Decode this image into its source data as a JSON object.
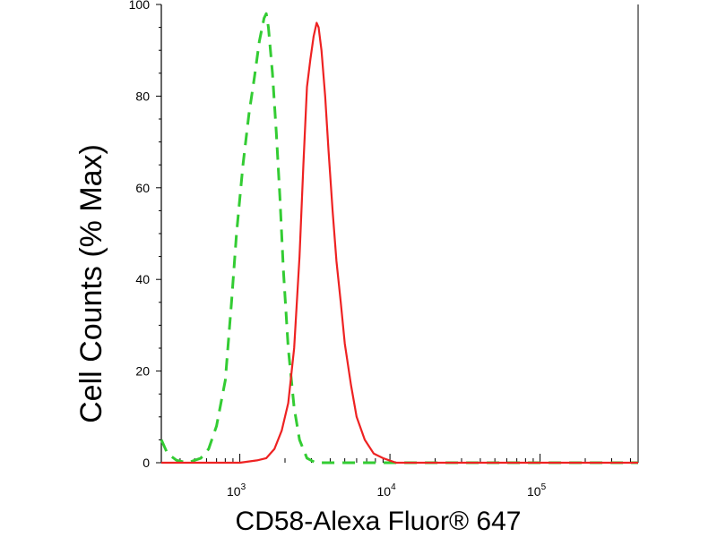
{
  "chart_data": {
    "type": "line",
    "xlabel": "CD58-Alexa Fluor® 647",
    "ylabel": "Cell Counts (% Max)",
    "x_scale": "log",
    "xlim": [
      300,
      450000
    ],
    "ylim": [
      0,
      100
    ],
    "y_ticks": [
      "0",
      "20",
      "40",
      "60",
      "80",
      "100"
    ],
    "x_ticks": [
      {
        "base": "10",
        "exp": "3",
        "value": 1000
      },
      {
        "base": "10",
        "exp": "4",
        "value": 10000
      },
      {
        "base": "10",
        "exp": "5",
        "value": 100000
      }
    ],
    "series": [
      {
        "color": "#33cc33",
        "dash": "dashed",
        "points": [
          [
            300,
            5
          ],
          [
            330,
            2
          ],
          [
            380,
            0.5
          ],
          [
            450,
            0
          ],
          [
            550,
            1
          ],
          [
            620,
            3
          ],
          [
            700,
            8
          ],
          [
            800,
            18
          ],
          [
            880,
            35
          ],
          [
            950,
            50
          ],
          [
            1050,
            65
          ],
          [
            1150,
            76
          ],
          [
            1250,
            84
          ],
          [
            1350,
            92
          ],
          [
            1450,
            97
          ],
          [
            1500,
            98
          ],
          [
            1550,
            95
          ],
          [
            1650,
            85
          ],
          [
            1750,
            72
          ],
          [
            1850,
            58
          ],
          [
            1950,
            42
          ],
          [
            2100,
            25
          ],
          [
            2300,
            12
          ],
          [
            2500,
            5
          ],
          [
            2800,
            1
          ],
          [
            3200,
            0
          ],
          [
            450000,
            0
          ]
        ]
      },
      {
        "color": "#ee2222",
        "dash": "solid",
        "points": [
          [
            300,
            0
          ],
          [
            1000,
            0
          ],
          [
            1300,
            0.5
          ],
          [
            1500,
            1
          ],
          [
            1700,
            3
          ],
          [
            1900,
            7
          ],
          [
            2100,
            13
          ],
          [
            2300,
            25
          ],
          [
            2500,
            45
          ],
          [
            2650,
            65
          ],
          [
            2800,
            82
          ],
          [
            2950,
            88
          ],
          [
            3100,
            93
          ],
          [
            3250,
            96
          ],
          [
            3350,
            95
          ],
          [
            3500,
            90
          ],
          [
            3700,
            80
          ],
          [
            3900,
            68
          ],
          [
            4150,
            55
          ],
          [
            4400,
            44
          ],
          [
            4700,
            35
          ],
          [
            5000,
            26
          ],
          [
            5500,
            17
          ],
          [
            6000,
            10
          ],
          [
            6800,
            5
          ],
          [
            7800,
            2
          ],
          [
            9000,
            1
          ],
          [
            11000,
            0
          ],
          [
            450000,
            0
          ]
        ]
      }
    ],
    "grid": false,
    "legend": "none"
  }
}
